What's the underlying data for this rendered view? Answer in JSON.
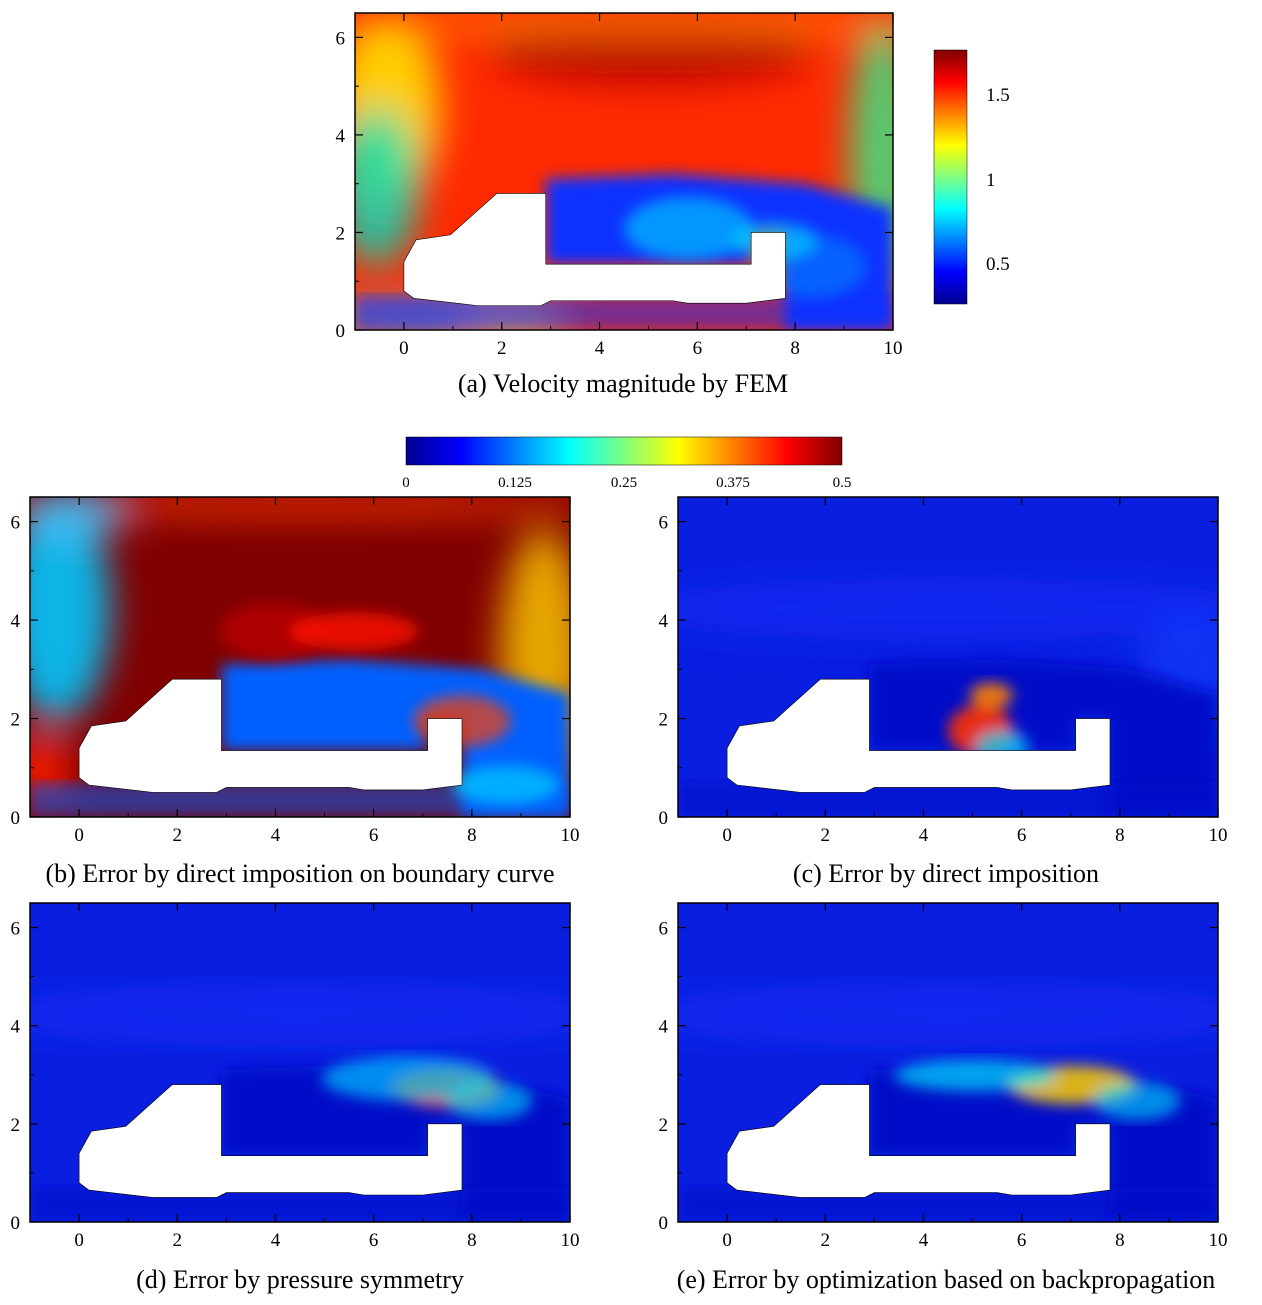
{
  "colorbars": {
    "velocity": {
      "ticks": [
        "1.5",
        "1",
        "0.5"
      ],
      "tick_values": [
        1.5,
        1.0,
        0.5
      ],
      "range": [
        0.27,
        1.72
      ]
    },
    "error": {
      "ticks": [
        "0",
        "0.125",
        "0.25",
        "0.375",
        "0.5"
      ],
      "tick_values": [
        0,
        0.125,
        0.25,
        0.375,
        0.5
      ],
      "range": [
        0,
        0.5
      ]
    }
  },
  "colormap": [
    "#00008f",
    "#0000ff",
    "#0080ff",
    "#00ffff",
    "#80ff80",
    "#ffff00",
    "#ff8000",
    "#ff0000",
    "#800000"
  ],
  "chart_data": [
    {
      "type": "heatmap",
      "caption": "(a) Velocity magnitude by FEM",
      "xlabel": "",
      "ylabel": "",
      "xlim": [
        -1,
        10
      ],
      "ylim": [
        0,
        6.5
      ],
      "x_ticks": [
        "0",
        "2",
        "4",
        "6",
        "8",
        "10"
      ],
      "y_ticks": [
        "0",
        "2",
        "4",
        "6"
      ],
      "colorbar": "velocity"
    },
    {
      "type": "heatmap",
      "caption": "(b) Error by direct imposition on boundary curve",
      "xlabel": "",
      "ylabel": "",
      "xlim": [
        -1,
        10
      ],
      "ylim": [
        0,
        6.5
      ],
      "x_ticks": [
        "0",
        "2",
        "4",
        "6",
        "8",
        "10"
      ],
      "y_ticks": [
        "0",
        "2",
        "4",
        "6"
      ],
      "colorbar": "error"
    },
    {
      "type": "heatmap",
      "caption": "(c) Error by direct imposition",
      "xlabel": "",
      "ylabel": "",
      "xlim": [
        -1,
        10
      ],
      "ylim": [
        0,
        6.5
      ],
      "x_ticks": [
        "0",
        "2",
        "4",
        "6",
        "8",
        "10"
      ],
      "y_ticks": [
        "0",
        "2",
        "4",
        "6"
      ],
      "colorbar": "error"
    },
    {
      "type": "heatmap",
      "caption": "(d) Error by pressure symmetry",
      "xlabel": "",
      "ylabel": "",
      "xlim": [
        -1,
        10
      ],
      "ylim": [
        0,
        6.5
      ],
      "x_ticks": [
        "0",
        "2",
        "4",
        "6",
        "8",
        "10"
      ],
      "y_ticks": [
        "0",
        "2",
        "4",
        "6"
      ],
      "colorbar": "error"
    },
    {
      "type": "heatmap",
      "caption": "(e) Error by optimization based on backpropagation",
      "xlabel": "",
      "ylabel": "",
      "xlim": [
        -1,
        10
      ],
      "ylim": [
        0,
        6.5
      ],
      "x_ticks": [
        "0",
        "2",
        "4",
        "6",
        "8",
        "10"
      ],
      "y_ticks": [
        "0",
        "2",
        "4",
        "6"
      ],
      "colorbar": "error"
    }
  ]
}
